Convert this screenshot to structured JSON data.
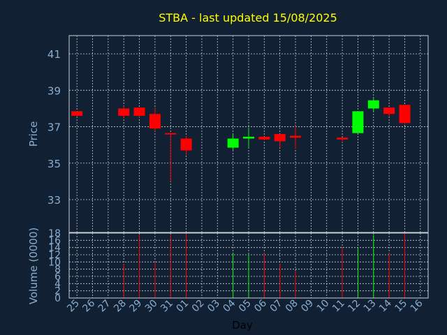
{
  "title": "STBA - last updated 15/08/2025",
  "colors": {
    "background": "#112033",
    "frame": "#c8d0d8",
    "grid": "#c8d0d8",
    "tick_text": "#8aaed0",
    "axis_label": "#8aaed0",
    "xlabel": "#000000",
    "title": "#ffff00",
    "up": "#00ff00",
    "down": "#ff0000"
  },
  "chart_data": {
    "type": "candlestick",
    "title": "STBA - last updated 15/08/2025",
    "xlabel": "Day",
    "price_panel": {
      "ylabel": "Price",
      "ylim": [
        31.2,
        42
      ],
      "yticks": [
        "33",
        "35",
        "37",
        "39",
        "41"
      ],
      "grid": true
    },
    "volume_panel": {
      "ylabel": "Volume (0000)",
      "ylim": [
        0,
        18
      ],
      "yticks": [
        "0",
        "2",
        "4",
        "6",
        "8",
        "10",
        "12",
        "14",
        "16",
        "18"
      ],
      "grid": true
    },
    "x_labels": [
      "25",
      "26",
      "27",
      "28",
      "29",
      "30",
      "31",
      "01",
      "02",
      "03",
      "04",
      "05",
      "06",
      "07",
      "08",
      "09",
      "10",
      "11",
      "12",
      "13",
      "14",
      "15",
      "16"
    ],
    "candles": [
      {
        "day": "25",
        "open": 37.85,
        "high": 37.85,
        "low": 37.55,
        "close": 37.6,
        "volume": 0
      },
      {
        "day": "28",
        "open": 38.0,
        "high": 38.15,
        "low": 37.45,
        "close": 37.6,
        "volume": 9.5
      },
      {
        "day": "29",
        "open": 38.05,
        "high": 38.05,
        "low": 37.5,
        "close": 37.6,
        "volume": 17.5
      },
      {
        "day": "30",
        "open": 37.7,
        "high": 38.05,
        "low": 36.75,
        "close": 36.9,
        "volume": 10.0
      },
      {
        "day": "31",
        "open": 36.65,
        "high": 36.65,
        "low": 34.0,
        "close": 36.6,
        "volume": 17.5
      },
      {
        "day": "01",
        "open": 36.35,
        "high": 36.5,
        "low": 35.45,
        "close": 35.7,
        "volume": 18.0
      },
      {
        "day": "04",
        "open": 35.85,
        "high": 36.6,
        "low": 35.7,
        "close": 36.35,
        "volume": 12.5
      },
      {
        "day": "05",
        "open": 36.35,
        "high": 36.95,
        "low": 35.8,
        "close": 36.45,
        "volume": 12.0
      },
      {
        "day": "06",
        "open": 36.45,
        "high": 36.45,
        "low": 36.25,
        "close": 36.3,
        "volume": 12.5
      },
      {
        "day": "07",
        "open": 36.6,
        "high": 36.6,
        "low": 35.85,
        "close": 36.2,
        "volume": 9.5
      },
      {
        "day": "08",
        "open": 36.5,
        "high": 37.05,
        "low": 35.8,
        "close": 36.4,
        "volume": 7.5
      },
      {
        "day": "11",
        "open": 36.4,
        "high": 36.4,
        "low": 36.15,
        "close": 36.3,
        "volume": 14.0
      },
      {
        "day": "12",
        "open": 36.65,
        "high": 37.85,
        "low": 36.65,
        "close": 37.85,
        "volume": 14.0
      },
      {
        "day": "13",
        "open": 38.0,
        "high": 38.55,
        "low": 37.8,
        "close": 38.45,
        "volume": 17.5
      },
      {
        "day": "14",
        "open": 38.05,
        "high": 38.05,
        "low": 37.55,
        "close": 37.7,
        "volume": 12.5
      },
      {
        "day": "15",
        "open": 38.2,
        "high": 38.2,
        "low": 37.15,
        "close": 37.2,
        "volume": 18.0
      }
    ]
  }
}
